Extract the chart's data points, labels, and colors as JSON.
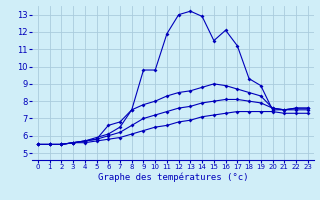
{
  "xlabel": "Graphe des températures (°c)",
  "x_ticks": [
    0,
    1,
    2,
    3,
    4,
    5,
    6,
    7,
    8,
    9,
    10,
    11,
    12,
    13,
    14,
    15,
    16,
    17,
    18,
    19,
    20,
    21,
    22,
    23
  ],
  "y_ticks": [
    5,
    6,
    7,
    8,
    9,
    10,
    11,
    12,
    13
  ],
  "ylim": [
    4.6,
    13.5
  ],
  "xlim": [
    -0.5,
    23.5
  ],
  "bg_color": "#d0eef8",
  "line_color": "#0000bb",
  "grid_color": "#aaccdd",
  "series": [
    [
      5.5,
      5.5,
      5.5,
      5.6,
      5.7,
      5.8,
      6.6,
      6.8,
      7.5,
      9.8,
      9.8,
      11.9,
      13.0,
      13.2,
      12.9,
      11.5,
      12.1,
      11.2,
      9.3,
      8.9,
      7.5,
      7.5,
      7.6,
      7.6
    ],
    [
      5.5,
      5.5,
      5.5,
      5.6,
      5.7,
      5.9,
      6.1,
      6.5,
      7.5,
      7.8,
      8.0,
      8.3,
      8.5,
      8.6,
      8.8,
      9.0,
      8.9,
      8.7,
      8.5,
      8.3,
      7.6,
      7.5,
      7.6,
      7.6
    ],
    [
      5.5,
      5.5,
      5.5,
      5.6,
      5.7,
      5.8,
      6.0,
      6.2,
      6.6,
      7.0,
      7.2,
      7.4,
      7.6,
      7.7,
      7.9,
      8.0,
      8.1,
      8.1,
      8.0,
      7.9,
      7.6,
      7.5,
      7.5,
      7.5
    ],
    [
      5.5,
      5.5,
      5.5,
      5.6,
      5.6,
      5.7,
      5.8,
      5.9,
      6.1,
      6.3,
      6.5,
      6.6,
      6.8,
      6.9,
      7.1,
      7.2,
      7.3,
      7.4,
      7.4,
      7.4,
      7.4,
      7.3,
      7.3,
      7.3
    ]
  ]
}
